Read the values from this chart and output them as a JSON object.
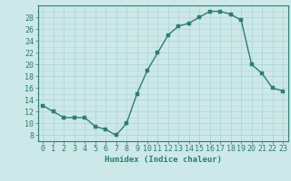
{
  "x": [
    0,
    1,
    2,
    3,
    4,
    5,
    6,
    7,
    8,
    9,
    10,
    11,
    12,
    13,
    14,
    15,
    16,
    17,
    18,
    19,
    20,
    21,
    22,
    23
  ],
  "y": [
    13,
    12,
    11,
    11,
    11,
    9.5,
    9,
    8,
    10,
    15,
    19,
    22,
    25,
    26.5,
    27,
    28,
    29,
    29,
    28.5,
    27.5,
    20,
    18.5,
    16,
    15.5
  ],
  "line_color": "#2e7d6e",
  "marker_color": "#2e7d6e",
  "bg_color": "#cce8e8",
  "grid_color": "#b0d8d8",
  "xlabel": "Humidex (Indice chaleur)",
  "ylim": [
    7,
    30
  ],
  "xlim": [
    -0.5,
    23.5
  ],
  "yticks": [
    8,
    10,
    12,
    14,
    16,
    18,
    20,
    22,
    24,
    26,
    28
  ],
  "xticks": [
    0,
    1,
    2,
    3,
    4,
    5,
    6,
    7,
    8,
    9,
    10,
    11,
    12,
    13,
    14,
    15,
    16,
    17,
    18,
    19,
    20,
    21,
    22,
    23
  ],
  "label_fontsize": 6.5,
  "tick_fontsize": 6,
  "linewidth": 1.0,
  "markersize": 2.5
}
